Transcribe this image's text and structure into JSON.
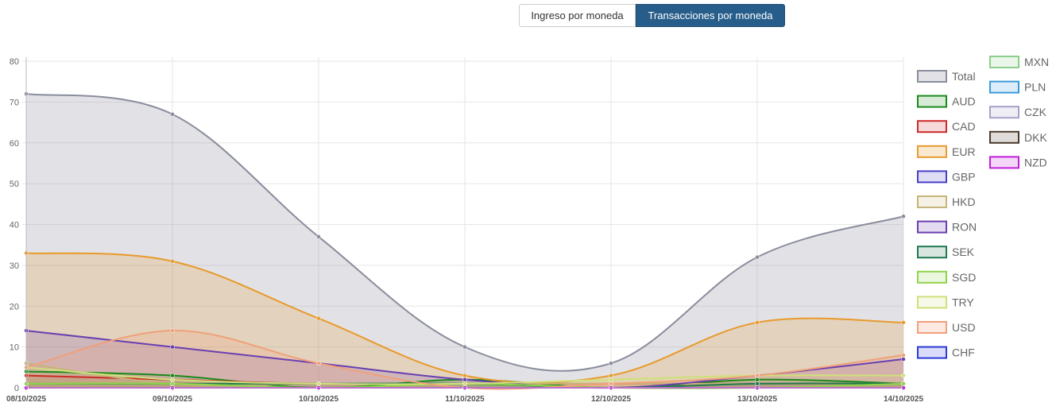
{
  "toggle": {
    "left_label": "Ingreso por moneda",
    "right_label": "Transacciones por moneda"
  },
  "chart_data": {
    "type": "area",
    "title": "",
    "xlabel": "",
    "ylabel": "",
    "ylim": [
      0,
      80
    ],
    "yticks": [
      0,
      10,
      20,
      30,
      40,
      50,
      60,
      70,
      80
    ],
    "grid": true,
    "legend_position": "right",
    "x": [
      "08/10/2025",
      "09/10/2025",
      "10/10/2025",
      "11/10/2025",
      "12/10/2025",
      "13/10/2025",
      "14/10/2025"
    ],
    "series": [
      {
        "name": "Total",
        "color": "#8a8d9c",
        "fill": "rgba(138,141,156,0.25)",
        "values": [
          72,
          67,
          37,
          10,
          6,
          32,
          42
        ]
      },
      {
        "name": "AUD",
        "color": "#1a8a1a",
        "fill": "rgba(26,138,26,0.18)",
        "values": [
          4,
          3,
          0,
          2,
          0,
          2,
          1
        ]
      },
      {
        "name": "CAD",
        "color": "#cc2a2a",
        "fill": "rgba(204,42,42,0.18)",
        "values": [
          3,
          2,
          1,
          1,
          1,
          1,
          1
        ]
      },
      {
        "name": "EUR",
        "color": "#e89a2c",
        "fill": "rgba(232,154,44,0.22)",
        "values": [
          33,
          31,
          17,
          3,
          3,
          16,
          16
        ]
      },
      {
        "name": "GBP",
        "color": "#4a40c8",
        "fill": "rgba(74,64,200,0.18)",
        "values": [
          0,
          0,
          0,
          0,
          0,
          0,
          0
        ]
      },
      {
        "name": "HKD",
        "color": "#c8b47a",
        "fill": "rgba(200,180,122,0.18)",
        "values": [
          6,
          1,
          1,
          1,
          1,
          1,
          1
        ]
      },
      {
        "name": "RON",
        "color": "#6a3fb0",
        "fill": "rgba(106,63,176,0.18)",
        "values": [
          14,
          10,
          6,
          2,
          0,
          3,
          7
        ]
      },
      {
        "name": "SEK",
        "color": "#1f7a50",
        "fill": "rgba(31,122,80,0.18)",
        "values": [
          1,
          1,
          1,
          1,
          0,
          1,
          1
        ]
      },
      {
        "name": "SGD",
        "color": "#8fd44a",
        "fill": "rgba(143,212,74,0.18)",
        "values": [
          1,
          1,
          0,
          1,
          0,
          0,
          1
        ]
      },
      {
        "name": "TRY",
        "color": "#cfe07a",
        "fill": "rgba(207,224,122,0.18)",
        "values": [
          5,
          2,
          1,
          1,
          2,
          3,
          3
        ]
      },
      {
        "name": "USD",
        "color": "#f0a07a",
        "fill": "rgba(240,160,122,0.22)",
        "values": [
          5,
          14,
          6,
          0,
          1,
          3,
          8
        ]
      },
      {
        "name": "CHF",
        "color": "#2a3ad6",
        "fill": "rgba(42,58,214,0.18)",
        "values": [
          0,
          0,
          0,
          0,
          0,
          0,
          0
        ]
      },
      {
        "name": "MXN",
        "color": "#8ccf8c",
        "fill": "rgba(140,207,140,0.18)",
        "values": [
          0,
          0,
          0,
          0,
          0,
          0,
          0
        ]
      },
      {
        "name": "PLN",
        "color": "#3a9ad8",
        "fill": "rgba(58,154,216,0.18)",
        "values": [
          0,
          0,
          0,
          0,
          0,
          0,
          0
        ]
      },
      {
        "name": "CZK",
        "color": "#a8a0c8",
        "fill": "rgba(168,160,200,0.18)",
        "values": [
          0,
          0,
          0,
          0,
          0,
          0,
          0
        ]
      },
      {
        "name": "DKK",
        "color": "#4a3a2a",
        "fill": "rgba(74,58,42,0.18)",
        "values": [
          0,
          0,
          0,
          0,
          0,
          0,
          0
        ]
      },
      {
        "name": "NZD",
        "color": "#c020d8",
        "fill": "rgba(192,32,216,0.18)",
        "values": [
          0,
          0,
          0,
          0,
          0,
          0,
          0
        ]
      }
    ]
  }
}
